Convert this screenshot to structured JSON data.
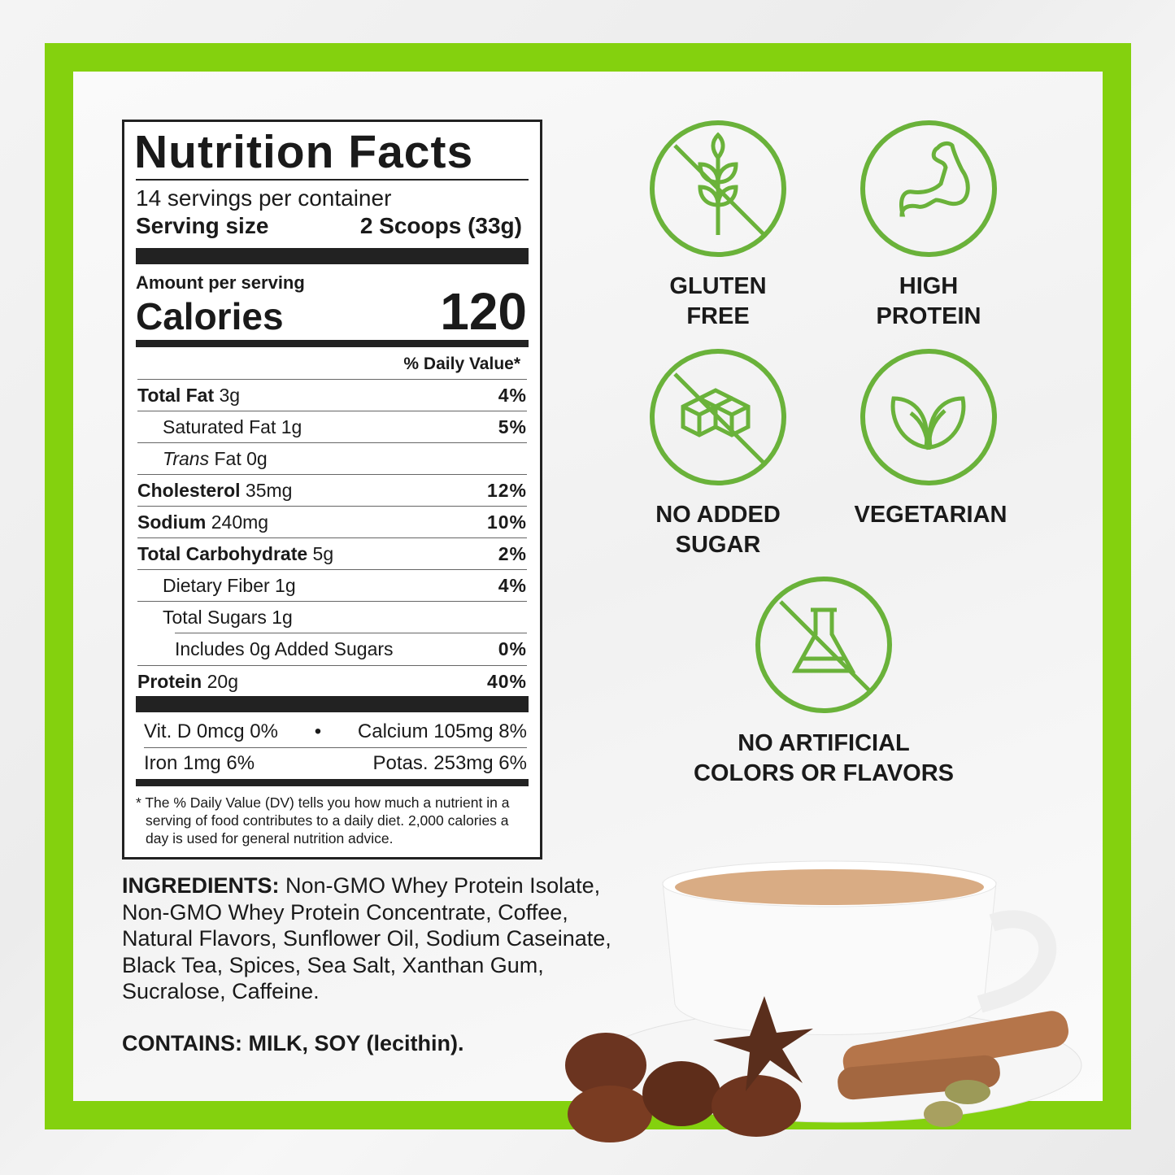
{
  "nutrition": {
    "title": "Nutrition Facts",
    "servings": "14 servings per container",
    "serving_size_label": "Serving size",
    "serving_size_value": "2 Scoops (33g)",
    "amount_per_serving": "Amount per serving",
    "calories_label": "Calories",
    "calories_value": "120",
    "dv_header": "% Daily Value*",
    "rows": [
      {
        "name": "Total Fat",
        "amount": "3g",
        "dv": "4%"
      },
      {
        "name": "Saturated Fat",
        "amount": "1g",
        "dv": "5%"
      },
      {
        "name": "Trans",
        "name2": "Fat",
        "amount": "0g",
        "dv": ""
      },
      {
        "name": "Cholesterol",
        "amount": "35mg",
        "dv": "12%"
      },
      {
        "name": "Sodium",
        "amount": "240mg",
        "dv": "10%"
      },
      {
        "name": "Total Carbohydrate",
        "amount": "5g",
        "dv": "2%"
      },
      {
        "name": "Dietary Fiber",
        "amount": "1g",
        "dv": "4%"
      },
      {
        "name": "Total Sugars",
        "amount": "1g",
        "dv": ""
      },
      {
        "name": "Includes 0g Added Sugars",
        "amount": "",
        "dv": "0%"
      },
      {
        "name": "Protein",
        "amount": "20g",
        "dv": "40%"
      }
    ],
    "vitd": "Vit. D 0mcg 0%",
    "calcium": "Calcium 105mg 8%",
    "iron": "Iron 1mg 6%",
    "potassium": "Potas. 253mg 6%",
    "footnote": "* The % Daily Value (DV) tells you how much a nutrient in a serving of food contributes to a daily diet. 2,000 calories a day is used for general nutrition advice."
  },
  "ingredients": {
    "label": "INGREDIENTS:",
    "text": " Non-GMO Whey Protein Isolate, Non-GMO Whey Protein Concentrate, Coffee, Natural Flavors, Sunflower Oil, Sodium Caseinate, Black Tea, Spices, Sea Salt, Xanthan Gum, Sucralose, Caffeine."
  },
  "contains": "CONTAINS: MILK, SOY (lecithin).",
  "badges": [
    {
      "label": "GLUTEN\nFREE",
      "icon": "wheat-crossed-icon"
    },
    {
      "label": "HIGH\nPROTEIN",
      "icon": "flexed-arm-icon"
    },
    {
      "label": "NO ADDED\nSUGAR",
      "icon": "sugar-cubes-crossed-icon"
    },
    {
      "label": "VEGETARIAN",
      "icon": "leaf-icon"
    },
    {
      "label": "NO ARTIFICIAL\nCOLORS OR FLAVORS",
      "icon": "flask-crossed-icon"
    }
  ],
  "colors": {
    "frame": "#84d10e",
    "icon": "#6ab23a"
  }
}
